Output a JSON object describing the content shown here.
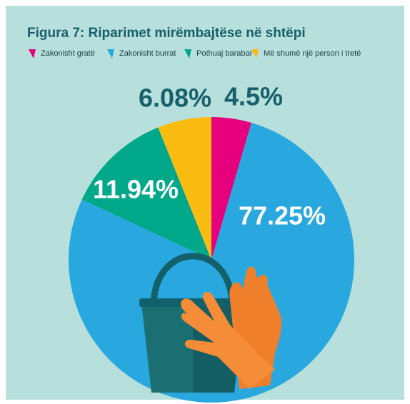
{
  "chart_data": {
    "type": "pie",
    "title": "Figura 7: Riparimet mirëmbajtëse në shtëpi",
    "categories": [
      "Zakonisht gratë",
      "Zakonisht burrat",
      "Pothuaj barabar",
      "Më shumë një person i tretë"
    ],
    "values": [
      4.5,
      77.25,
      11.94,
      6.08
    ],
    "value_labels": [
      "4.5%",
      "77.25%",
      "11.94%",
      "6.08%"
    ],
    "colors": [
      "#e6007e",
      "#29a8e0",
      "#00a88a",
      "#fbbc12"
    ]
  }
}
